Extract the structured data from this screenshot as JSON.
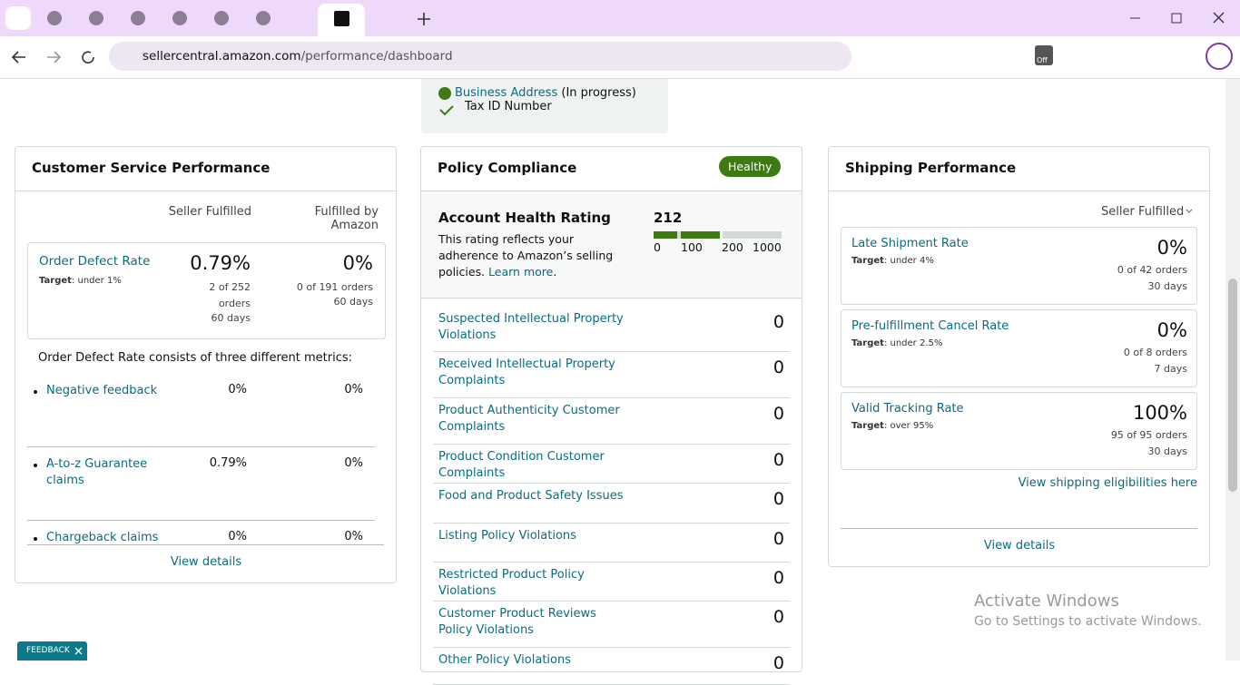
{
  "browser": {
    "url_host": "sellercentral.amazon.com",
    "url_path": "/performance/dashboard",
    "extension_badge": "Off"
  },
  "verification": {
    "business_address": "Business Address",
    "business_address_status": "(In progress)",
    "tax_id": "Tax ID Number"
  },
  "customer_service": {
    "title": "Customer Service Performance",
    "columns": [
      "Seller Fulfilled",
      "Fulfilled by Amazon"
    ],
    "order_defect": {
      "name": "Order Defect Rate",
      "target_label": "Target",
      "target": ": under 1%",
      "seller": {
        "value": "0.79%",
        "orders": "2 of 252 orders",
        "period": "60 days"
      },
      "amazon": {
        "value": "0%",
        "orders": "0 of 191 orders",
        "period": "60 days"
      }
    },
    "intro": "Order Defect Rate consists of three different metrics:",
    "metrics": [
      {
        "name": "Negative feedback",
        "seller": "0%",
        "amazon": "0%"
      },
      {
        "name": "A-to-z Guarantee claims",
        "seller": "0.79%",
        "amazon": "0%"
      },
      {
        "name": "Chargeback claims",
        "seller": "0%",
        "amazon": "0%"
      }
    ],
    "view_details": "View details"
  },
  "policy": {
    "title": "Policy Compliance",
    "status": "Healthy",
    "rating_title": "Account Health Rating",
    "rating_text": "This rating reflects your adherence to Amazon’s selling policies.",
    "learn_more": "Learn more",
    "rating_text_end": ".",
    "score": "212",
    "scale": [
      "0",
      "100",
      "200",
      "1000"
    ],
    "rows": [
      {
        "name": "Suspected Intellectual Property Violations",
        "count": "0"
      },
      {
        "name": "Received Intellectual Property Complaints",
        "count": "0"
      },
      {
        "name": "Product Authenticity Customer Complaints",
        "count": "0"
      },
      {
        "name": "Product Condition Customer Complaints",
        "count": "0"
      },
      {
        "name": "Food and Product Safety Issues",
        "count": "0"
      },
      {
        "name": "Listing Policy Violations",
        "count": "0"
      },
      {
        "name": "Restricted Product Policy Violations",
        "count": "0"
      },
      {
        "name": "Customer Product Reviews Policy Violations",
        "count": "0"
      },
      {
        "name": "Other Policy Violations",
        "count": "0"
      }
    ]
  },
  "shipping": {
    "title": "Shipping Performance",
    "filter": "Seller Fulfilled",
    "metrics": [
      {
        "name": "Late Shipment Rate",
        "target_label": "Target",
        "target": ": under 4%",
        "value": "0%",
        "orders": "0 of 42 orders",
        "period": "30 days"
      },
      {
        "name": "Pre-fulfillment Cancel Rate",
        "target_label": "Target",
        "target": ": under 2.5%",
        "value": "0%",
        "orders": "0 of 8 orders",
        "period": "7 days"
      },
      {
        "name": "Valid Tracking Rate",
        "target_label": "Target",
        "target": ": over 95%",
        "value": "100%",
        "orders": "95 of 95 orders",
        "period": "30 days"
      }
    ],
    "eligibility_link": "View shipping eligibilities here",
    "view_details": "View details"
  },
  "watermark": {
    "title": "Activate Windows",
    "text": "Go to Settings to activate Windows."
  },
  "feedback": "FEEDBACK"
}
